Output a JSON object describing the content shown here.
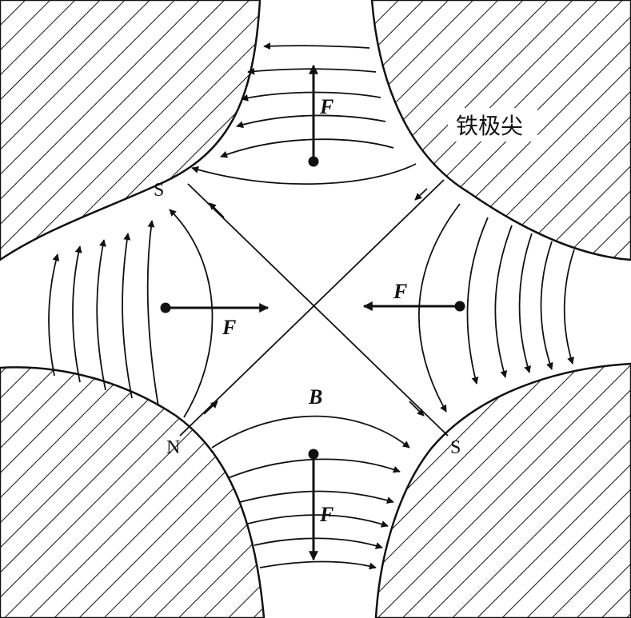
{
  "labels": {
    "material": "铁极尖",
    "field": "B",
    "force": "F",
    "pole_top_left": "S",
    "pole_bottom_left": "N",
    "pole_bottom_right": "S"
  },
  "colors": {
    "ink": "#111111",
    "background": "#ffffff"
  }
}
